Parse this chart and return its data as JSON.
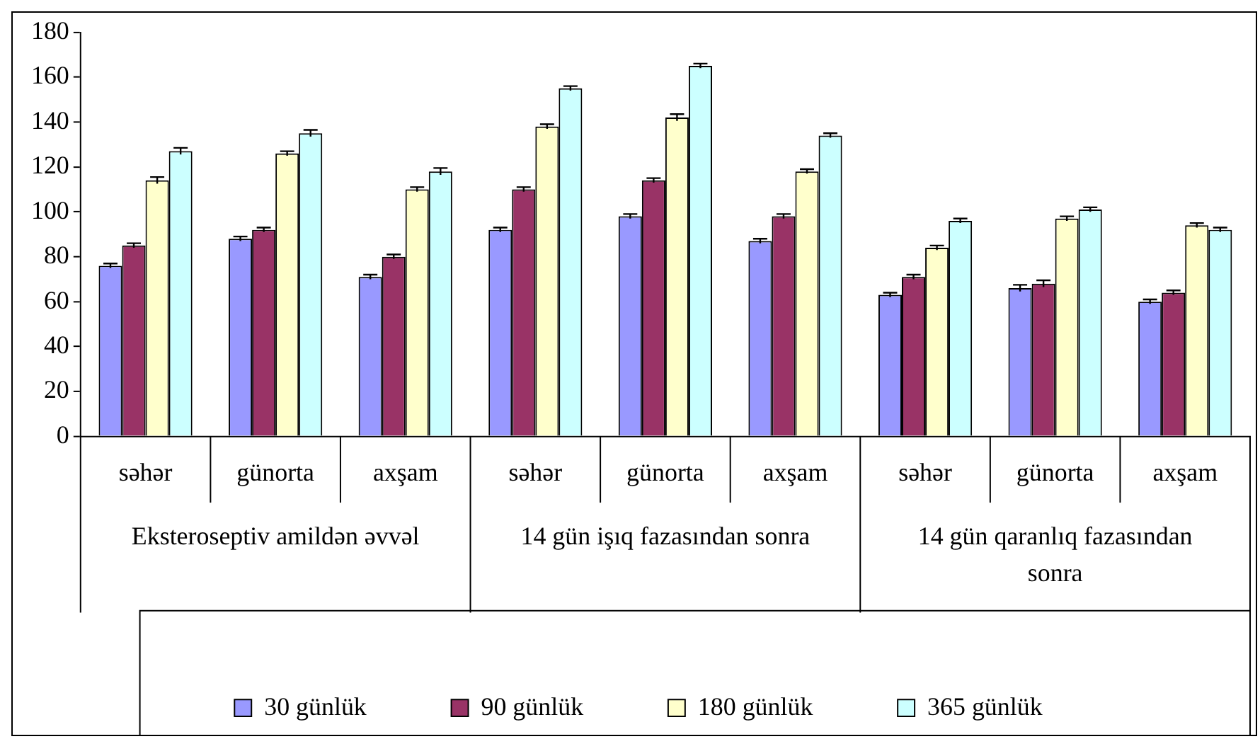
{
  "chart_data": {
    "type": "bar",
    "categories": [
      "səhər",
      "günorta",
      "axşam",
      "səhər",
      "günorta",
      "axşam",
      "səhər",
      "günorta",
      "axşam"
    ],
    "series": [
      {
        "name": "30 günlük",
        "color": "#9999ff",
        "values": [
          76,
          88,
          71,
          92,
          98,
          87,
          63,
          66,
          60
        ],
        "errors": [
          1,
          1,
          1,
          1,
          1,
          1,
          1,
          1.5,
          1
        ]
      },
      {
        "name": "90 günlük",
        "color": "#993366",
        "values": [
          85,
          92,
          80,
          110,
          114,
          98,
          71,
          68,
          64
        ],
        "errors": [
          1,
          1,
          1,
          1,
          1,
          1,
          1,
          1.5,
          1
        ]
      },
      {
        "name": "180 günlük",
        "color": "#ffffcc",
        "values": [
          114,
          126,
          110,
          138,
          142,
          118,
          84,
          97,
          94
        ],
        "errors": [
          1.5,
          1,
          1,
          1,
          1.5,
          1,
          1,
          1,
          1
        ]
      },
      {
        "name": "365 günlük",
        "color": "#ccffff",
        "values": [
          127,
          135,
          118,
          155,
          165,
          134,
          96,
          101,
          92
        ],
        "errors": [
          1.5,
          1.5,
          1.5,
          1,
          1,
          1,
          1,
          1,
          1
        ]
      }
    ],
    "annotations": [
      "Eksteroseptiv amildən əvvəl",
      "14 gün işıq fazasından sonra",
      "14 gün qaranlıq fazasından sonra"
    ],
    "ylim": [
      0,
      180
    ],
    "yticks": [
      0,
      20,
      40,
      60,
      80,
      100,
      120,
      140,
      160,
      180
    ],
    "grid": false,
    "legend": "bottom"
  }
}
